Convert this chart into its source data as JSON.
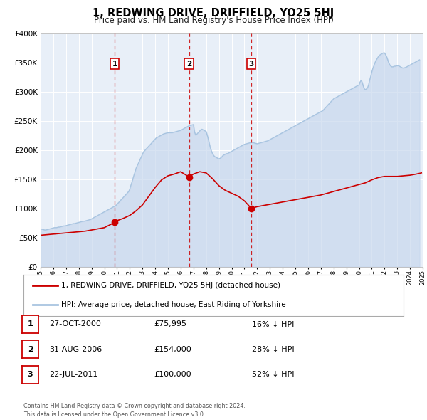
{
  "title": "1, REDWING DRIVE, DRIFFIELD, YO25 5HJ",
  "subtitle": "Price paid vs. HM Land Registry's House Price Index (HPI)",
  "title_fontsize": 10.5,
  "subtitle_fontsize": 8.5,
  "background_color": "#ffffff",
  "plot_background_color": "#e8eff8",
  "grid_color": "#ffffff",
  "hpi_color": "#a8c4e0",
  "hpi_fill_color": "#c8d8ee",
  "price_color": "#cc0000",
  "ylim": [
    0,
    400000
  ],
  "yticks": [
    0,
    50000,
    100000,
    150000,
    200000,
    250000,
    300000,
    350000,
    400000
  ],
  "xlim": [
    1995,
    2025
  ],
  "transactions": [
    {
      "num": 1,
      "date_decimal": 2000.82,
      "price": 75995,
      "label": "27-OCT-2000",
      "pct": "16%"
    },
    {
      "num": 2,
      "date_decimal": 2006.66,
      "price": 154000,
      "label": "31-AUG-2006",
      "pct": "28%"
    },
    {
      "num": 3,
      "date_decimal": 2011.55,
      "price": 100000,
      "label": "22-JUL-2011",
      "pct": "52%"
    }
  ],
  "legend_entries": [
    "1, REDWING DRIVE, DRIFFIELD, YO25 5HJ (detached house)",
    "HPI: Average price, detached house, East Riding of Yorkshire"
  ],
  "table_rows": [
    {
      "num": 1,
      "date": "27-OCT-2000",
      "price": "£75,995",
      "pct": "16% ↓ HPI"
    },
    {
      "num": 2,
      "date": "31-AUG-2006",
      "price": "£154,000",
      "pct": "28% ↓ HPI"
    },
    {
      "num": 3,
      "date": "22-JUL-2011",
      "price": "£100,000",
      "pct": "52% ↓ HPI"
    }
  ],
  "footer": "Contains HM Land Registry data © Crown copyright and database right 2024.\nThis data is licensed under the Open Government Licence v3.0.",
  "hpi_data_x": [
    1995.0,
    1995.08,
    1995.17,
    1995.25,
    1995.33,
    1995.42,
    1995.5,
    1995.58,
    1995.67,
    1995.75,
    1995.83,
    1995.92,
    1996.0,
    1996.08,
    1996.17,
    1996.25,
    1996.33,
    1996.42,
    1996.5,
    1996.58,
    1996.67,
    1996.75,
    1996.83,
    1996.92,
    1997.0,
    1997.08,
    1997.17,
    1997.25,
    1997.33,
    1997.42,
    1997.5,
    1997.58,
    1997.67,
    1997.75,
    1997.83,
    1997.92,
    1998.0,
    1998.08,
    1998.17,
    1998.25,
    1998.33,
    1998.42,
    1998.5,
    1998.58,
    1998.67,
    1998.75,
    1998.83,
    1998.92,
    1999.0,
    1999.08,
    1999.17,
    1999.25,
    1999.33,
    1999.42,
    1999.5,
    1999.58,
    1999.67,
    1999.75,
    1999.83,
    1999.92,
    2000.0,
    2000.08,
    2000.17,
    2000.25,
    2000.33,
    2000.42,
    2000.5,
    2000.58,
    2000.67,
    2000.75,
    2000.83,
    2000.92,
    2001.0,
    2001.08,
    2001.17,
    2001.25,
    2001.33,
    2001.42,
    2001.5,
    2001.58,
    2001.67,
    2001.75,
    2001.83,
    2001.92,
    2002.0,
    2002.08,
    2002.17,
    2002.25,
    2002.33,
    2002.42,
    2002.5,
    2002.58,
    2002.67,
    2002.75,
    2002.83,
    2002.92,
    2003.0,
    2003.08,
    2003.17,
    2003.25,
    2003.33,
    2003.42,
    2003.5,
    2003.58,
    2003.67,
    2003.75,
    2003.83,
    2003.92,
    2004.0,
    2004.08,
    2004.17,
    2004.25,
    2004.33,
    2004.42,
    2004.5,
    2004.58,
    2004.67,
    2004.75,
    2004.83,
    2004.92,
    2005.0,
    2005.08,
    2005.17,
    2005.25,
    2005.33,
    2005.42,
    2005.5,
    2005.58,
    2005.67,
    2005.75,
    2005.83,
    2005.92,
    2006.0,
    2006.08,
    2006.17,
    2006.25,
    2006.33,
    2006.42,
    2006.5,
    2006.58,
    2006.67,
    2006.75,
    2006.83,
    2006.92,
    2007.0,
    2007.08,
    2007.17,
    2007.25,
    2007.33,
    2007.42,
    2007.5,
    2007.58,
    2007.67,
    2007.75,
    2007.83,
    2007.92,
    2008.0,
    2008.08,
    2008.17,
    2008.25,
    2008.33,
    2008.42,
    2008.5,
    2008.58,
    2008.67,
    2008.75,
    2008.83,
    2008.92,
    2009.0,
    2009.08,
    2009.17,
    2009.25,
    2009.33,
    2009.42,
    2009.5,
    2009.58,
    2009.67,
    2009.75,
    2009.83,
    2009.92,
    2010.0,
    2010.08,
    2010.17,
    2010.25,
    2010.33,
    2010.42,
    2010.5,
    2010.58,
    2010.67,
    2010.75,
    2010.83,
    2010.92,
    2011.0,
    2011.08,
    2011.17,
    2011.25,
    2011.33,
    2011.42,
    2011.5,
    2011.58,
    2011.67,
    2011.75,
    2011.83,
    2011.92,
    2012.0,
    2012.08,
    2012.17,
    2012.25,
    2012.33,
    2012.42,
    2012.5,
    2012.58,
    2012.67,
    2012.75,
    2012.83,
    2012.92,
    2013.0,
    2013.08,
    2013.17,
    2013.25,
    2013.33,
    2013.42,
    2013.5,
    2013.58,
    2013.67,
    2013.75,
    2013.83,
    2013.92,
    2014.0,
    2014.08,
    2014.17,
    2014.25,
    2014.33,
    2014.42,
    2014.5,
    2014.58,
    2014.67,
    2014.75,
    2014.83,
    2014.92,
    2015.0,
    2015.08,
    2015.17,
    2015.25,
    2015.33,
    2015.42,
    2015.5,
    2015.58,
    2015.67,
    2015.75,
    2015.83,
    2015.92,
    2016.0,
    2016.08,
    2016.17,
    2016.25,
    2016.33,
    2016.42,
    2016.5,
    2016.58,
    2016.67,
    2016.75,
    2016.83,
    2016.92,
    2017.0,
    2017.08,
    2017.17,
    2017.25,
    2017.33,
    2017.42,
    2017.5,
    2017.58,
    2017.67,
    2017.75,
    2017.83,
    2017.92,
    2018.0,
    2018.08,
    2018.17,
    2018.25,
    2018.33,
    2018.42,
    2018.5,
    2018.58,
    2018.67,
    2018.75,
    2018.83,
    2018.92,
    2019.0,
    2019.08,
    2019.17,
    2019.25,
    2019.33,
    2019.42,
    2019.5,
    2019.58,
    2019.67,
    2019.75,
    2019.83,
    2019.92,
    2020.0,
    2020.08,
    2020.17,
    2020.25,
    2020.33,
    2020.42,
    2020.5,
    2020.58,
    2020.67,
    2020.75,
    2020.83,
    2020.92,
    2021.0,
    2021.08,
    2021.17,
    2021.25,
    2021.33,
    2021.42,
    2021.5,
    2021.58,
    2021.67,
    2021.75,
    2021.83,
    2021.92,
    2022.0,
    2022.08,
    2022.17,
    2022.25,
    2022.33,
    2022.42,
    2022.5,
    2022.58,
    2022.67,
    2022.75,
    2022.83,
    2022.92,
    2023.0,
    2023.08,
    2023.17,
    2023.25,
    2023.33,
    2023.42,
    2023.5,
    2023.58,
    2023.67,
    2023.75,
    2023.83,
    2023.92,
    2024.0,
    2024.08,
    2024.17,
    2024.25,
    2024.33,
    2024.42,
    2024.5,
    2024.58,
    2024.67,
    2024.75
  ],
  "hpi_data_y": [
    65000,
    64500,
    64000,
    63500,
    63000,
    63000,
    63500,
    64000,
    64500,
    65000,
    65500,
    66000,
    66500,
    67000,
    67000,
    67000,
    67500,
    68000,
    68000,
    68500,
    69000,
    69500,
    70000,
    70000,
    70500,
    71000,
    71500,
    72000,
    72500,
    73000,
    73500,
    74000,
    74000,
    74500,
    75000,
    75500,
    76000,
    76500,
    77000,
    77500,
    78000,
    78000,
    78500,
    79000,
    79500,
    80000,
    80500,
    81000,
    82000,
    83000,
    84000,
    85000,
    86000,
    87000,
    88000,
    89000,
    90000,
    91000,
    92000,
    93000,
    94000,
    95000,
    96000,
    97000,
    98000,
    99000,
    100000,
    101000,
    102000,
    103000,
    104000,
    105000,
    107000,
    109000,
    111000,
    113000,
    115000,
    117000,
    119000,
    121000,
    123000,
    125000,
    127000,
    129000,
    133000,
    139000,
    145000,
    151000,
    157000,
    163000,
    169000,
    173000,
    177000,
    181000,
    185000,
    189000,
    193000,
    197000,
    199000,
    201000,
    203000,
    205000,
    207000,
    209000,
    211000,
    213000,
    215000,
    217000,
    219000,
    221000,
    222000,
    223000,
    224000,
    225000,
    226000,
    227000,
    228000,
    228500,
    229000,
    229500,
    230000,
    230000,
    230000,
    230000,
    230000,
    230500,
    231000,
    231500,
    232000,
    232500,
    233000,
    233500,
    234000,
    235000,
    236000,
    237000,
    238000,
    239000,
    240000,
    241000,
    242000,
    242500,
    243000,
    243500,
    244000,
    232000,
    226000,
    227000,
    229000,
    231000,
    233000,
    235000,
    236000,
    235000,
    234000,
    233000,
    232000,
    226000,
    219000,
    211000,
    204000,
    198000,
    194000,
    191000,
    189000,
    188000,
    187000,
    186000,
    185000,
    186000,
    187000,
    189000,
    191000,
    192000,
    193000,
    194000,
    194000,
    195000,
    196000,
    197000,
    198000,
    199000,
    200000,
    201000,
    202000,
    203000,
    204000,
    205000,
    206000,
    207000,
    208000,
    209000,
    210000,
    210500,
    211000,
    211500,
    212000,
    212500,
    213000,
    213500,
    213000,
    212500,
    212000,
    211500,
    211000,
    211500,
    212000,
    212500,
    213000,
    213500,
    214000,
    214500,
    215000,
    215500,
    216000,
    217000,
    218000,
    219000,
    220000,
    221000,
    222000,
    223000,
    224000,
    225000,
    226000,
    227000,
    228000,
    229000,
    230000,
    231000,
    232000,
    233000,
    234000,
    235000,
    236000,
    237000,
    238000,
    239000,
    240000,
    241000,
    242000,
    243000,
    244000,
    245000,
    246000,
    247000,
    248000,
    249000,
    250000,
    251000,
    252000,
    253000,
    254000,
    255000,
    256000,
    257000,
    258000,
    259000,
    260000,
    261000,
    262000,
    263000,
    264000,
    265000,
    266000,
    267000,
    268000,
    270000,
    272000,
    274000,
    276000,
    278000,
    280000,
    282000,
    284000,
    286000,
    288000,
    289000,
    290000,
    291000,
    292000,
    293000,
    294000,
    295000,
    296000,
    297000,
    298000,
    299000,
    300000,
    301000,
    302000,
    303000,
    304000,
    305000,
    306000,
    307000,
    308000,
    309000,
    310000,
    311000,
    312000,
    317000,
    320000,
    316000,
    310000,
    305000,
    304000,
    305000,
    307000,
    312000,
    320000,
    327000,
    334000,
    340000,
    345000,
    350000,
    354000,
    357000,
    360000,
    362000,
    364000,
    365000,
    366000,
    367000,
    367000,
    364000,
    360000,
    355000,
    350000,
    346000,
    344000,
    343000,
    343000,
    344000,
    344000,
    344500,
    345000,
    345000,
    344000,
    343000,
    342000,
    341000,
    341000,
    341500,
    342000,
    343000,
    344000,
    345000,
    346000,
    347000,
    348000,
    349000,
    350000,
    351000,
    352000,
    353000,
    354000,
    355000
  ],
  "price_line_x": [
    1995.0,
    1995.5,
    1996.0,
    1996.5,
    1997.0,
    1997.5,
    1998.0,
    1998.5,
    1999.0,
    1999.5,
    2000.0,
    2000.82,
    2001.0,
    2001.5,
    2002.0,
    2002.5,
    2003.0,
    2003.5,
    2004.0,
    2004.5,
    2005.0,
    2005.5,
    2006.0,
    2006.66,
    2007.0,
    2007.5,
    2008.0,
    2008.5,
    2009.0,
    2009.5,
    2010.0,
    2010.5,
    2011.0,
    2011.55,
    2012.0,
    2012.5,
    2013.0,
    2013.5,
    2014.0,
    2014.5,
    2015.0,
    2015.5,
    2016.0,
    2016.5,
    2017.0,
    2017.5,
    2018.0,
    2018.5,
    2019.0,
    2019.5,
    2020.0,
    2020.5,
    2021.0,
    2021.5,
    2022.0,
    2022.5,
    2023.0,
    2023.5,
    2024.0,
    2024.5,
    2024.9
  ],
  "price_line_y": [
    54000,
    55000,
    56000,
    57000,
    58000,
    59000,
    60000,
    61000,
    63000,
    65000,
    67000,
    75995,
    79000,
    83000,
    88000,
    96000,
    106000,
    121000,
    136000,
    149000,
    156000,
    159000,
    163000,
    154000,
    159000,
    163000,
    161000,
    151000,
    139000,
    131000,
    126000,
    121000,
    113000,
    100000,
    103000,
    105000,
    107000,
    109000,
    111000,
    113000,
    115000,
    117000,
    119000,
    121000,
    123000,
    126000,
    129000,
    132000,
    135000,
    138000,
    141000,
    144000,
    149000,
    153000,
    155000,
    155000,
    155000,
    156000,
    157000,
    159000,
    161000
  ]
}
